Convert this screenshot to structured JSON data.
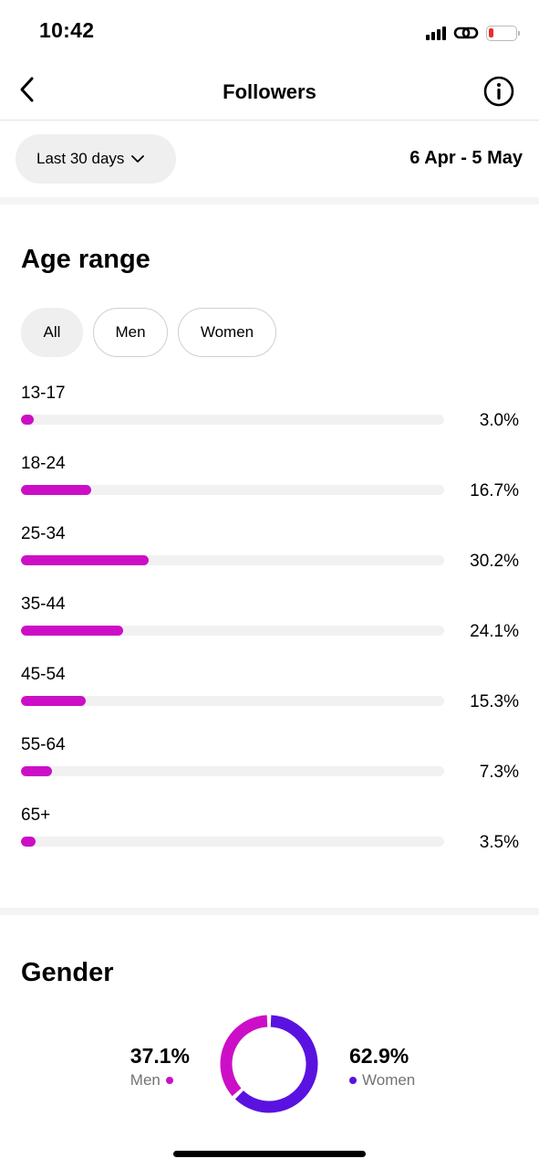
{
  "status_bar": {
    "time": "10:42"
  },
  "nav": {
    "title": "Followers"
  },
  "filter": {
    "range_label": "Last 30 days",
    "date_range": "6 Apr - 5 May"
  },
  "age": {
    "title": "Age range",
    "tabs": [
      {
        "label": "All",
        "selected": true
      },
      {
        "label": "Men",
        "selected": false
      },
      {
        "label": "Women",
        "selected": false
      }
    ],
    "rows": [
      {
        "label": "13-17",
        "percent_text": "3.0%",
        "fill_fraction": 0.03
      },
      {
        "label": "18-24",
        "percent_text": "16.7%",
        "fill_fraction": 0.167
      },
      {
        "label": "25-34",
        "percent_text": "30.2%",
        "fill_fraction": 0.302
      },
      {
        "label": "35-44",
        "percent_text": "24.1%",
        "fill_fraction": 0.241
      },
      {
        "label": "45-54",
        "percent_text": "15.3%",
        "fill_fraction": 0.153
      },
      {
        "label": "55-64",
        "percent_text": "7.3%",
        "fill_fraction": 0.073
      },
      {
        "label": "65+",
        "percent_text": "3.5%",
        "fill_fraction": 0.035
      }
    ]
  },
  "gender": {
    "title": "Gender",
    "men": {
      "percent_text": "37.1%",
      "label": "Men",
      "value": 37.1
    },
    "women": {
      "percent_text": "62.9%",
      "label": "Women",
      "value": 62.9
    }
  },
  "colors": {
    "men": "#cc0fc6",
    "women": "#5a12e0",
    "track": "#f1f1f2"
  }
}
